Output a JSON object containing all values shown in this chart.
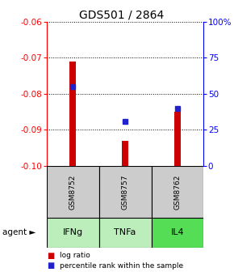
{
  "title": "GDS501 / 2864",
  "samples": [
    "GSM8752",
    "GSM8757",
    "GSM8762"
  ],
  "agents": [
    "IFNg",
    "TNFa",
    "IL4"
  ],
  "log_ratios": [
    -0.071,
    -0.093,
    -0.085
  ],
  "percentile_ranks": [
    55,
    31,
    40
  ],
  "ylim": [
    -0.1,
    -0.06
  ],
  "y2lim": [
    0,
    100
  ],
  "y_ticks": [
    -0.1,
    -0.09,
    -0.08,
    -0.07,
    -0.06
  ],
  "y2_ticks": [
    0,
    25,
    50,
    75,
    100
  ],
  "bar_color": "#cc0000",
  "dot_color": "#2222cc",
  "sample_bg": "#c8c8c8",
  "agent_colors": [
    "#bbeebb",
    "#bbeebb",
    "#55dd55"
  ],
  "legend_bar_color": "#cc0000",
  "legend_dot_color": "#2222cc",
  "bar_width": 0.12,
  "dot_size": 22,
  "title_fontsize": 10,
  "tick_fontsize": 7.5,
  "label_fontsize": 8
}
